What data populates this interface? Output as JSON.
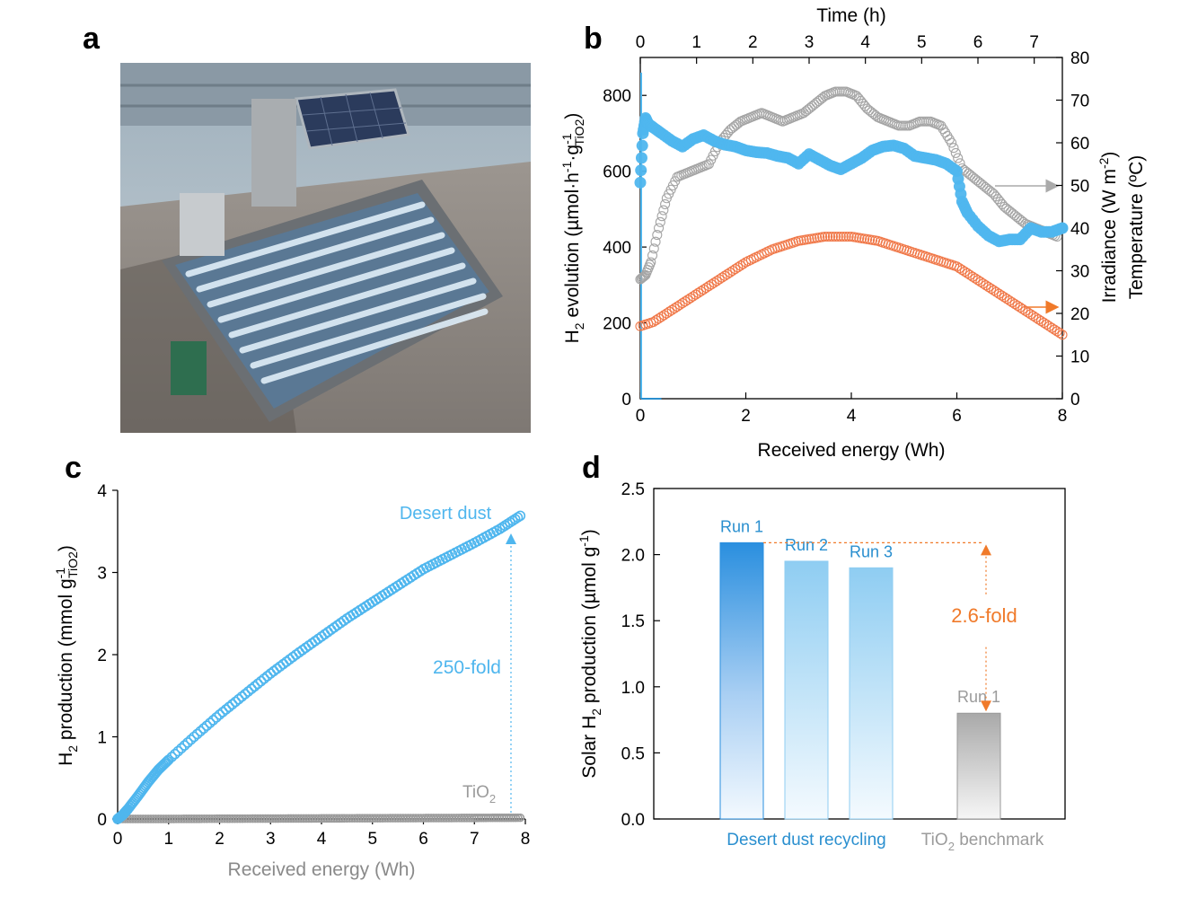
{
  "panel_letters": {
    "a": "a",
    "b": "b",
    "c": "c",
    "d": "d"
  },
  "colors": {
    "h2_blue": "#4fb6ee",
    "irradiance_orange": "#f0794a",
    "temperature_gray": "#a5a5a5",
    "tio2_gray": "#9b9b9b",
    "annotation_orange": "#f07a2a",
    "label_blue": "#2a8fcf"
  },
  "photo": {
    "subject": "solar photoreactor panel with glass tubes and PV module on rooftop"
  },
  "chart_data": [
    {
      "panel": "b",
      "type": "scatter",
      "xlabel": "Received energy (Wh)",
      "xlim": [
        0,
        8
      ],
      "x_ticks": [
        "0",
        "2",
        "4",
        "6",
        "8"
      ],
      "x2label": "Time (h)",
      "x2lim": [
        0,
        7.5
      ],
      "x2_ticks": [
        "0",
        "1",
        "2",
        "3",
        "4",
        "5",
        "6",
        "7"
      ],
      "ylabel_left": {
        "main": "H",
        "sub1": "2",
        "mid": " evolution (µmol·h",
        "sup1": "-1",
        "mid2": "·g",
        "sup2": "-1",
        "sub2": "TiO2",
        "end": ")"
      },
      "ylim_left": [
        0,
        900
      ],
      "y_ticks_left": [
        "0",
        "200",
        "400",
        "600",
        "800"
      ],
      "ylabel_right_irradiance": {
        "main": "Irradiance (W m",
        "sup": "-2",
        "end": ")"
      },
      "ylabel_right_temperature": "Temperature (ºC)",
      "ylim_right": [
        0,
        80
      ],
      "y_ticks_right": [
        "0",
        "10",
        "20",
        "30",
        "40",
        "50",
        "60",
        "70",
        "80"
      ],
      "series": [
        {
          "axis": "left",
          "color": "#4fb6ee",
          "style": "filled",
          "x": [
            0,
            0.05,
            0.1,
            0.15,
            0.25,
            0.4,
            0.6,
            0.8,
            1.0,
            1.2,
            1.4,
            1.6,
            1.8,
            2.0,
            2.2,
            2.4,
            2.6,
            2.8,
            3.0,
            3.2,
            3.4,
            3.6,
            3.8,
            4.0,
            4.2,
            4.4,
            4.6,
            4.8,
            5.0,
            5.2,
            5.4,
            5.6,
            5.8,
            6.0,
            6.1,
            6.2,
            6.4,
            6.6,
            6.8,
            7.0,
            7.2,
            7.4,
            7.6,
            7.8,
            8.0
          ],
          "y": [
            570,
            700,
            740,
            725,
            715,
            700,
            680,
            665,
            685,
            695,
            680,
            670,
            665,
            655,
            650,
            648,
            640,
            635,
            620,
            645,
            630,
            615,
            605,
            620,
            635,
            655,
            665,
            668,
            660,
            640,
            635,
            630,
            620,
            600,
            520,
            490,
            455,
            430,
            415,
            420,
            420,
            450,
            440,
            440,
            450
          ]
        },
        {
          "axis": "right",
          "color": "#a5a5a5",
          "style": "open",
          "x": [
            0,
            0.1,
            0.2,
            0.35,
            0.5,
            0.7,
            0.9,
            1.1,
            1.3,
            1.5,
            1.7,
            1.9,
            2.1,
            2.3,
            2.5,
            2.7,
            2.9,
            3.1,
            3.3,
            3.5,
            3.7,
            3.9,
            4.1,
            4.3,
            4.5,
            4.7,
            4.9,
            5.1,
            5.3,
            5.5,
            5.7,
            5.9,
            6.1,
            6.3,
            6.5,
            6.7,
            6.9,
            7.1,
            7.3,
            7.5,
            7.7,
            7.9
          ],
          "y": [
            28,
            29,
            32,
            40,
            47,
            52,
            53,
            54,
            55,
            60,
            63,
            65,
            66,
            67,
            66,
            65,
            66,
            67,
            69,
            71,
            72,
            72,
            71,
            68,
            66,
            65,
            64,
            64,
            65,
            65,
            64,
            60,
            54,
            52,
            50,
            48,
            45,
            43,
            41,
            40,
            39,
            38
          ]
        },
        {
          "axis": "right",
          "color": "#f0794a",
          "style": "open",
          "x": [
            0,
            0.25,
            0.5,
            0.75,
            1.0,
            1.25,
            1.5,
            1.75,
            2.0,
            2.25,
            2.5,
            2.75,
            3.0,
            3.25,
            3.5,
            3.75,
            4.0,
            4.25,
            4.5,
            4.75,
            5.0,
            5.25,
            5.5,
            5.75,
            6.0,
            6.25,
            6.5,
            6.75,
            7.0,
            7.25,
            7.5,
            7.75,
            8.0
          ],
          "y": [
            17,
            18,
            20,
            22,
            24,
            26,
            28,
            30,
            32,
            33.5,
            35,
            36,
            37,
            37.5,
            38,
            38,
            38,
            37.5,
            37,
            36,
            35,
            34,
            33,
            32,
            31,
            29,
            27,
            25,
            23,
            21,
            19,
            17,
            15
          ]
        }
      ]
    },
    {
      "panel": "c",
      "type": "line",
      "xlabel": "Received energy (Wh)",
      "xlim": [
        0,
        8
      ],
      "x_ticks": [
        "0",
        "1",
        "2",
        "3",
        "4",
        "5",
        "6",
        "7",
        "8"
      ],
      "ylabel": {
        "main": "H",
        "sub1": "2",
        "mid": " production (mmol g",
        "sup": "-1",
        "sub2": "TiO2",
        "end": ")"
      },
      "ylim": [
        0,
        4
      ],
      "y_ticks": [
        "0",
        "1",
        "2",
        "3",
        "4"
      ],
      "series": [
        {
          "name": "Desert dust",
          "color": "#4fb6ee",
          "x": [
            0,
            0.1,
            0.2,
            0.4,
            0.6,
            0.8,
            1.0,
            1.5,
            2.0,
            2.5,
            3.0,
            3.5,
            4.0,
            4.5,
            5.0,
            5.5,
            6.0,
            6.5,
            7.0,
            7.5,
            7.9
          ],
          "y": [
            0,
            0.05,
            0.12,
            0.28,
            0.45,
            0.6,
            0.72,
            1.0,
            1.27,
            1.52,
            1.77,
            2.0,
            2.22,
            2.44,
            2.64,
            2.84,
            3.04,
            3.2,
            3.36,
            3.53,
            3.69
          ]
        },
        {
          "name": "TiO2",
          "color": "#9b9b9b",
          "x": [
            0,
            1,
            2,
            3,
            4,
            5,
            6,
            7,
            7.9
          ],
          "y": [
            0,
            0.001,
            0.003,
            0.005,
            0.007,
            0.009,
            0.011,
            0.013,
            0.015
          ]
        }
      ],
      "annotations": {
        "fold": "250-fold",
        "desert_label": "Desert dust",
        "tio2_label_main": "TiO",
        "tio2_label_sub": "2"
      }
    },
    {
      "panel": "d",
      "type": "bar",
      "ylabel": {
        "main": "Solar H",
        "sub": "2",
        "mid": " production (µmol g",
        "sup": "-1",
        "end": ")"
      },
      "ylim": [
        0,
        2.5
      ],
      "y_ticks": [
        "0.0",
        "0.5",
        "1.0",
        "1.5",
        "2.0",
        "2.5"
      ],
      "bars": [
        {
          "label": "Run 1",
          "value": 2.09,
          "group": "Desert dust recycling"
        },
        {
          "label": "Run 2",
          "value": 1.95,
          "group": "Desert dust recycling"
        },
        {
          "label": "Run 3",
          "value": 1.9,
          "group": "Desert dust recycling"
        },
        {
          "label": "Run 1",
          "value": 0.8,
          "group": "TiO2 benchmark"
        }
      ],
      "group_labels": {
        "desert": "Desert dust recycling",
        "tio2_main": "TiO",
        "tio2_sub": "2",
        "tio2_end": " benchmark"
      },
      "annotations": {
        "fold": "2.6-fold"
      }
    }
  ]
}
